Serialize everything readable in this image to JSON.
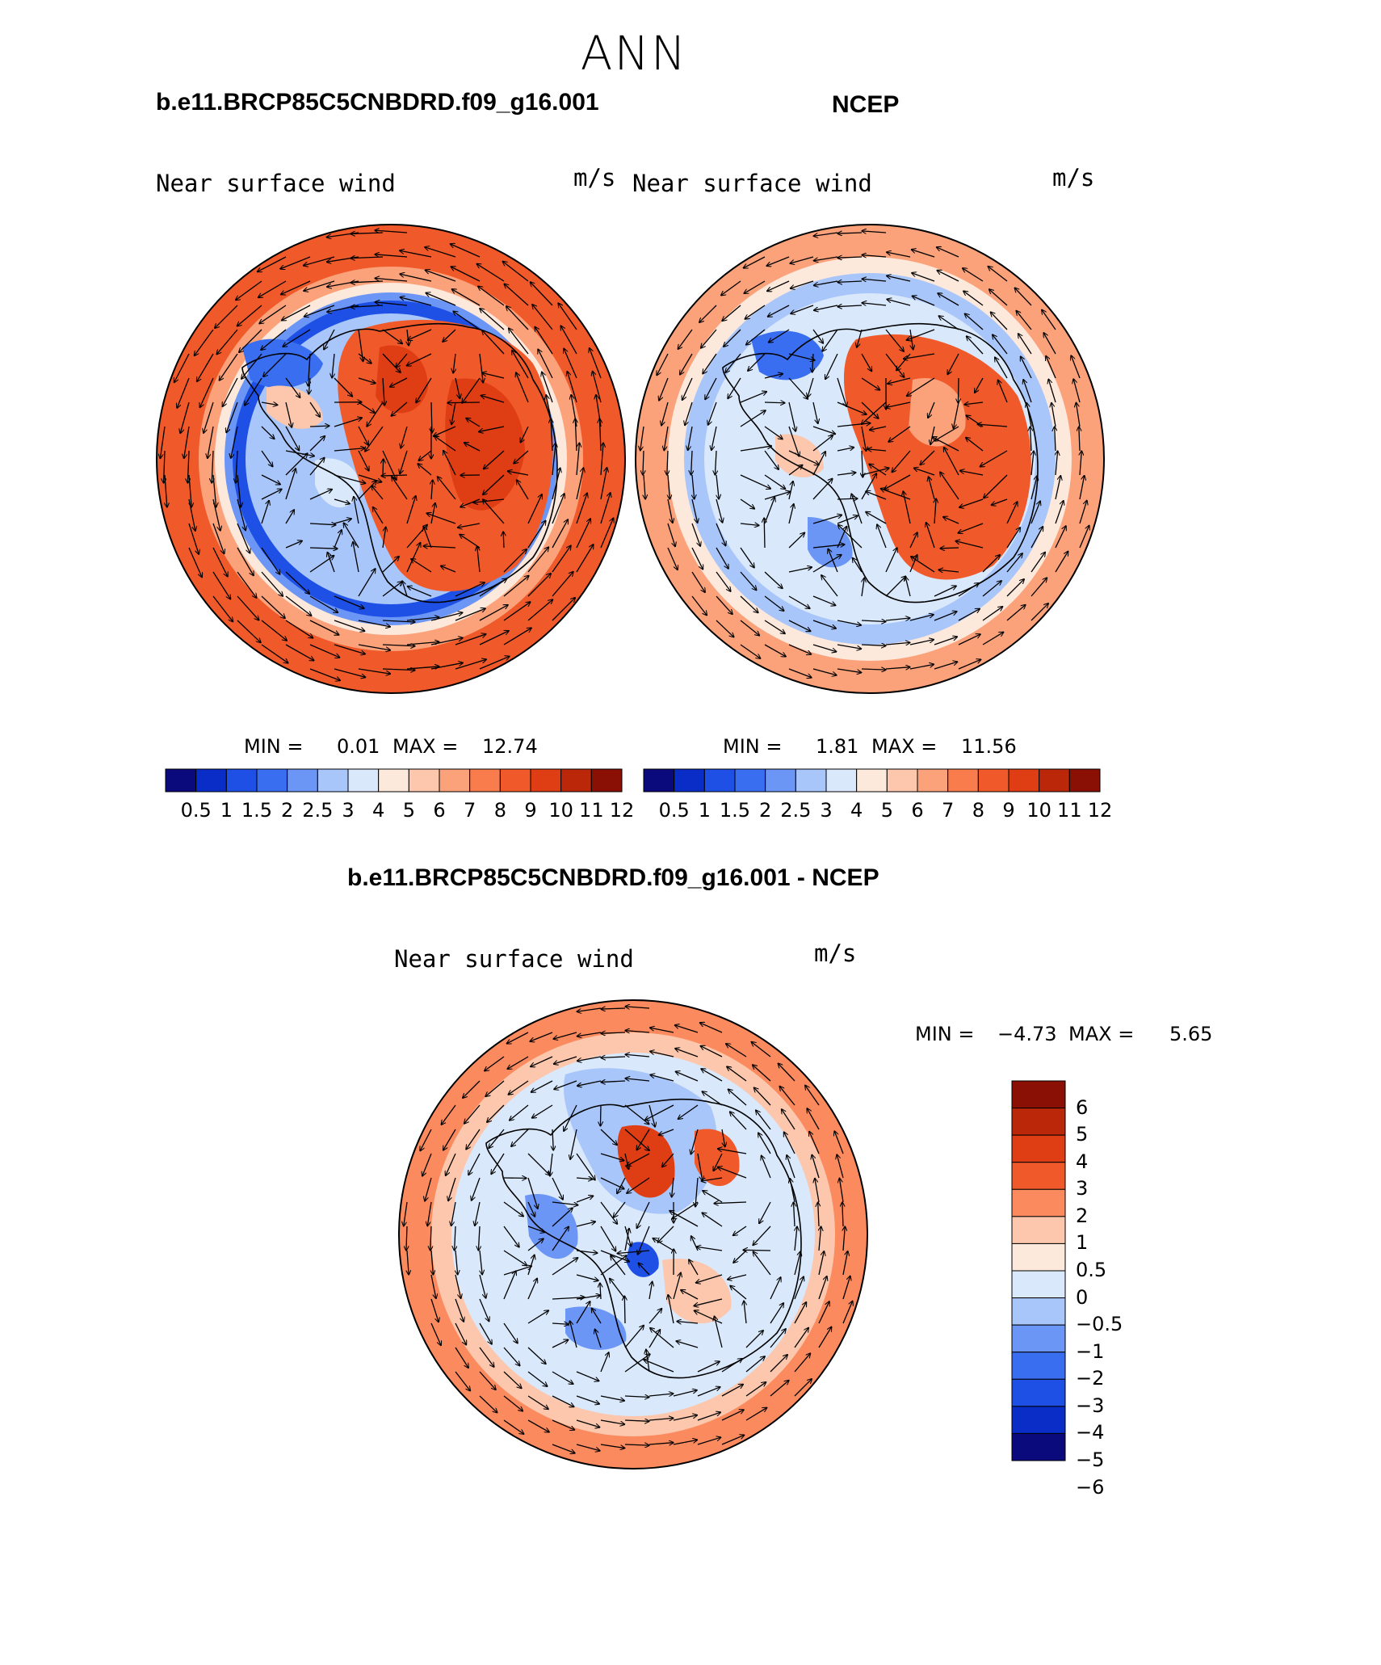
{
  "figure": {
    "season": "ANN",
    "bottom_title": "b.e11.BRCP85C5CNBDRD.f09_g16.001 - NCEP",
    "colors": {
      "seq": [
        "#0a0a7d",
        "#0a2dc8",
        "#1e50e6",
        "#3a6ef0",
        "#6c96f5",
        "#a8c6fa",
        "#d9e8fb",
        "#fde8dc",
        "#fcc7ac",
        "#fba27b",
        "#f97c4d",
        "#f05a2a",
        "#df3d13",
        "#bb2709",
        "#8a0f04"
      ],
      "diff": [
        "#8a0f04",
        "#bb2709",
        "#df3d13",
        "#f05a2a",
        "#fb8a5e",
        "#fcc7ac",
        "#fde9dc",
        "#d9e8fb",
        "#a8c6fa",
        "#6c96f5",
        "#3a6ef0",
        "#1e50e6",
        "#0a2dc8",
        "#0a0a7d"
      ]
    }
  },
  "panels": [
    {
      "id": "model",
      "title": "b.e11.BRCP85C5CNBDRD.f09_g16.001",
      "var": "Near surface wind",
      "units": "m/s",
      "min_label": "MIN =",
      "min": "0.01",
      "max_label": "MAX =",
      "max": "12.74",
      "levels": [
        "0.5",
        "1",
        "1.5",
        "2",
        "2.5",
        "3",
        "4",
        "5",
        "6",
        "7",
        "8",
        "9",
        "10",
        "11",
        "12"
      ]
    },
    {
      "id": "obs",
      "title": "NCEP",
      "var": "Near surface wind",
      "units": "m/s",
      "min_label": "MIN =",
      "min": "1.81",
      "max_label": "MAX =",
      "max": "11.56",
      "levels": [
        "0.5",
        "1",
        "1.5",
        "2",
        "2.5",
        "3",
        "4",
        "5",
        "6",
        "7",
        "8",
        "9",
        "10",
        "11",
        "12"
      ]
    },
    {
      "id": "diff",
      "var": "Near surface wind",
      "units": "m/s",
      "min_label": "MIN =",
      "min": "−4.73",
      "max_label": "MAX =",
      "max": "5.65",
      "levels": [
        "6",
        "5",
        "4",
        "3",
        "2",
        "1",
        "0.5",
        "0",
        "−0.5",
        "−1",
        "−2",
        "−3",
        "−4",
        "−5",
        "−6"
      ]
    }
  ]
}
